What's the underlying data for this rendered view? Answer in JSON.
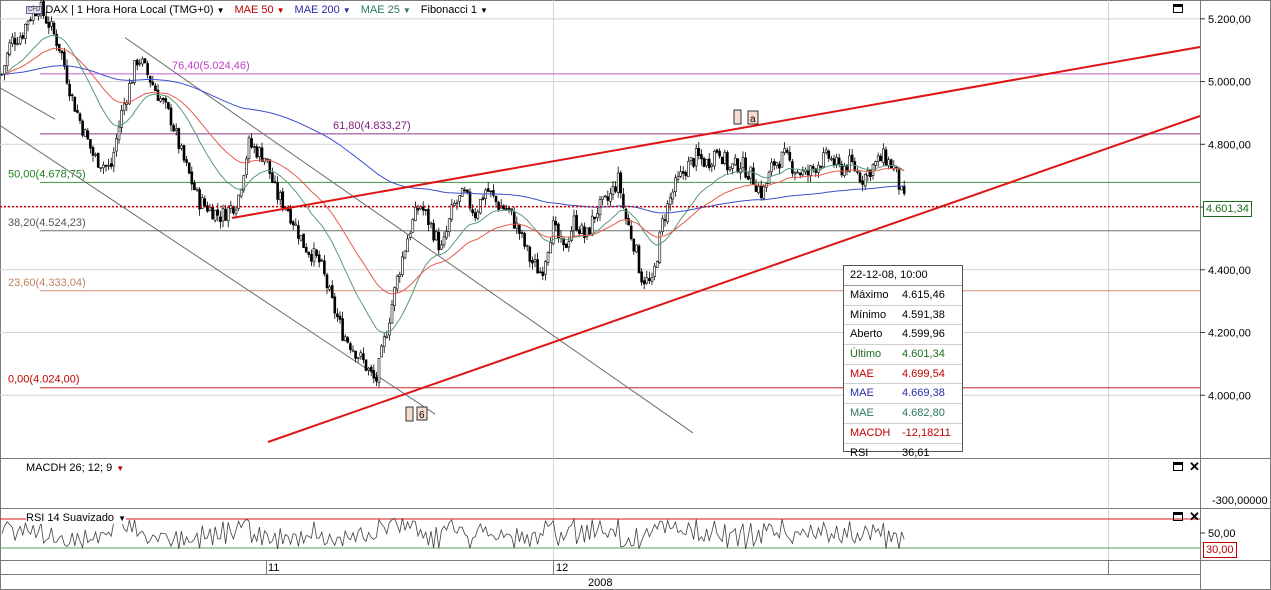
{
  "toolbar": {
    "badge": "CFD",
    "symbol": "DAX | 1 Hora Hora Local (TMG+0)",
    "mae50": "MAE 50",
    "mae200": "MAE 200",
    "mae25": "MAE 25",
    "fib": "Fibonacci 1"
  },
  "colors": {
    "grid": "#d4d4d4",
    "mae50": "#e8594d",
    "mae200": "#3a4fd0",
    "mae25": "#5a9a78",
    "trend_red": "#e01414",
    "channel_gray": "#6e6e6e",
    "fib_76": "#c040c0",
    "fib_61": "#7a1a7a",
    "fib_50": "#208020",
    "fib_38": "#555555",
    "fib_23": "#c08060",
    "fib_0": "#c00000",
    "last_price": "#c00000",
    "last_tag": "#1d6d1d",
    "rsi": "#404040",
    "rsi_line": "#5aa05a"
  },
  "chart_data": [
    {
      "type": "candlestick",
      "title": "DAX | 1 Hora Hora Local (TMG+0)",
      "x_ticks": [
        "11",
        "12"
      ],
      "x_period": "2008",
      "ylim": [
        3800,
        5260
      ],
      "y_ticks": [
        "5.200,00",
        "5.000,00",
        "4.800,00",
        "4.600,00",
        "4.400,00",
        "4.200,00",
        "4.000,00"
      ],
      "y_tick_values": [
        5200,
        5000,
        4800,
        4600,
        4400,
        4200,
        4000
      ],
      "grid": true,
      "last_price": 4601.34,
      "last_price_label": "4.601,34",
      "fibonacci": [
        {
          "label": "76,40(5.024,46)",
          "value": 5024.46,
          "color_key": "fib_76"
        },
        {
          "label": "61,80(4.833,27)",
          "value": 4833.27,
          "color_key": "fib_61"
        },
        {
          "label": "50,00(4.678,75)",
          "value": 4678.75,
          "color_key": "fib_50"
        },
        {
          "label": "38,20(4.524,23)",
          "value": 4524.23,
          "color_key": "fib_38"
        },
        {
          "label": "23,60(4.333,04)",
          "value": 4333.04,
          "color_key": "fib_23"
        },
        {
          "label": "0,00(4.024,00)",
          "value": 4024.0,
          "color_key": "fib_0"
        }
      ],
      "price_path": [
        [
          0.0,
          5000
        ],
        [
          0.01,
          5130
        ],
        [
          0.02,
          5150
        ],
        [
          0.025,
          5200
        ],
        [
          0.035,
          5240
        ],
        [
          0.045,
          5180
        ],
        [
          0.055,
          5100
        ],
        [
          0.065,
          4950
        ],
        [
          0.075,
          4850
        ],
        [
          0.085,
          4760
        ],
        [
          0.1,
          4720
        ],
        [
          0.11,
          4900
        ],
        [
          0.125,
          5080
        ],
        [
          0.14,
          4980
        ],
        [
          0.155,
          4880
        ],
        [
          0.165,
          4760
        ],
        [
          0.18,
          4620
        ],
        [
          0.2,
          4570
        ],
        [
          0.215,
          4620
        ],
        [
          0.225,
          4800
        ],
        [
          0.24,
          4760
        ],
        [
          0.25,
          4640
        ],
        [
          0.26,
          4600
        ],
        [
          0.275,
          4480
        ],
        [
          0.29,
          4420
        ],
        [
          0.3,
          4300
        ],
        [
          0.31,
          4200
        ],
        [
          0.32,
          4150
        ],
        [
          0.33,
          4100
        ],
        [
          0.34,
          4040
        ],
        [
          0.35,
          4210
        ],
        [
          0.36,
          4380
        ],
        [
          0.37,
          4520
        ],
        [
          0.38,
          4610
        ],
        [
          0.39,
          4540
        ],
        [
          0.4,
          4460
        ],
        [
          0.41,
          4600
        ],
        [
          0.42,
          4640
        ],
        [
          0.43,
          4580
        ],
        [
          0.44,
          4660
        ],
        [
          0.45,
          4610
        ],
        [
          0.46,
          4590
        ],
        [
          0.47,
          4520
        ],
        [
          0.48,
          4430
        ],
        [
          0.49,
          4390
        ],
        [
          0.5,
          4540
        ],
        [
          0.51,
          4460
        ],
        [
          0.52,
          4560
        ],
        [
          0.53,
          4500
        ],
        [
          0.54,
          4590
        ],
        [
          0.55,
          4620
        ],
        [
          0.56,
          4690
        ],
        [
          0.565,
          4580
        ],
        [
          0.575,
          4470
        ],
        [
          0.58,
          4380
        ],
        [
          0.59,
          4350
        ],
        [
          0.6,
          4560
        ],
        [
          0.61,
          4660
        ],
        [
          0.62,
          4720
        ],
        [
          0.63,
          4760
        ],
        [
          0.64,
          4740
        ],
        [
          0.65,
          4790
        ],
        [
          0.66,
          4720
        ],
        [
          0.67,
          4740
        ],
        [
          0.68,
          4700
        ],
        [
          0.69,
          4640
        ],
        [
          0.7,
          4740
        ],
        [
          0.71,
          4760
        ],
        [
          0.72,
          4720
        ],
        [
          0.73,
          4700
        ],
        [
          0.74,
          4740
        ],
        [
          0.75,
          4760
        ],
        [
          0.76,
          4720
        ],
        [
          0.77,
          4740
        ],
        [
          0.78,
          4690
        ],
        [
          0.79,
          4730
        ],
        [
          0.8,
          4760
        ],
        [
          0.81,
          4720
        ],
        [
          0.815,
          4650
        ],
        [
          0.82,
          4601
        ]
      ],
      "markers": [
        "6",
        "a"
      ]
    },
    {
      "type": "line",
      "title": "MACDH 26; 12; 9",
      "y_ticks": [
        "-300,00000"
      ],
      "values": []
    },
    {
      "type": "line",
      "title": "RSI 14 Suavizado",
      "y_ticks": [
        "50,00"
      ],
      "last_label": "30,00"
    }
  ],
  "infobox": {
    "title": "22-12-08, 10:00",
    "rows": [
      {
        "k": "Máximo",
        "v": "4.615,46",
        "c": "#000000"
      },
      {
        "k": "Mínimo",
        "v": "4.591,38",
        "c": "#000000"
      },
      {
        "k": "Aberto",
        "v": "4.599,96",
        "c": "#000000"
      },
      {
        "k": "Último",
        "v": "4.601,34",
        "c": "#1d6d1d"
      },
      {
        "k": "MAE",
        "v": "4.699,54",
        "c": "#c00000"
      },
      {
        "k": "MAE",
        "v": "4.669,38",
        "c": "#2a2aa8"
      },
      {
        "k": "MAE",
        "v": "4.682,80",
        "c": "#2a7a5a"
      },
      {
        "k": "MACDH",
        "v": "-12,18211",
        "c": "#c00000"
      },
      {
        "k": "RSI",
        "v": "36,61",
        "c": "#000000"
      }
    ]
  }
}
